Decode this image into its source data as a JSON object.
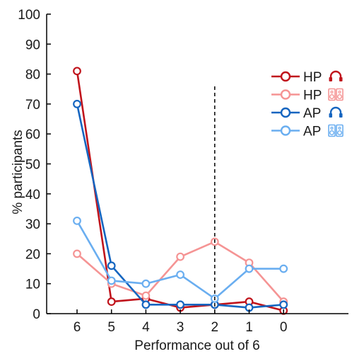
{
  "chart_data": {
    "type": "line",
    "title": "",
    "xlabel": "Performance out of 6",
    "ylabel": "% participants",
    "categories": [
      "6",
      "5",
      "4",
      "3",
      "2",
      "1",
      "0"
    ],
    "ylim": [
      0,
      100
    ],
    "yticks": [
      "0",
      "10",
      "20",
      "30",
      "40",
      "50",
      "60",
      "70",
      "80",
      "90",
      "100"
    ],
    "grid": false,
    "reference_line": {
      "x": "2",
      "style": "dashed"
    },
    "legend": {
      "placement": "top-right"
    },
    "series": [
      {
        "name": "HP",
        "icon": "headphones-icon",
        "color": "#c0141c",
        "values": [
          81,
          4,
          5,
          2,
          3,
          4,
          1
        ]
      },
      {
        "name": "HP",
        "icon": "speakers-icon",
        "color": "#f59494",
        "values": [
          20,
          10,
          6,
          19,
          24,
          17,
          4
        ]
      },
      {
        "name": "AP",
        "icon": "headphones-icon",
        "color": "#1565c0",
        "values": [
          70,
          16,
          3,
          3,
          3,
          2,
          3
        ]
      },
      {
        "name": "AP",
        "icon": "speakers-icon",
        "color": "#6aaef0",
        "values": [
          31,
          11,
          10,
          13,
          5,
          15,
          15
        ]
      }
    ]
  }
}
